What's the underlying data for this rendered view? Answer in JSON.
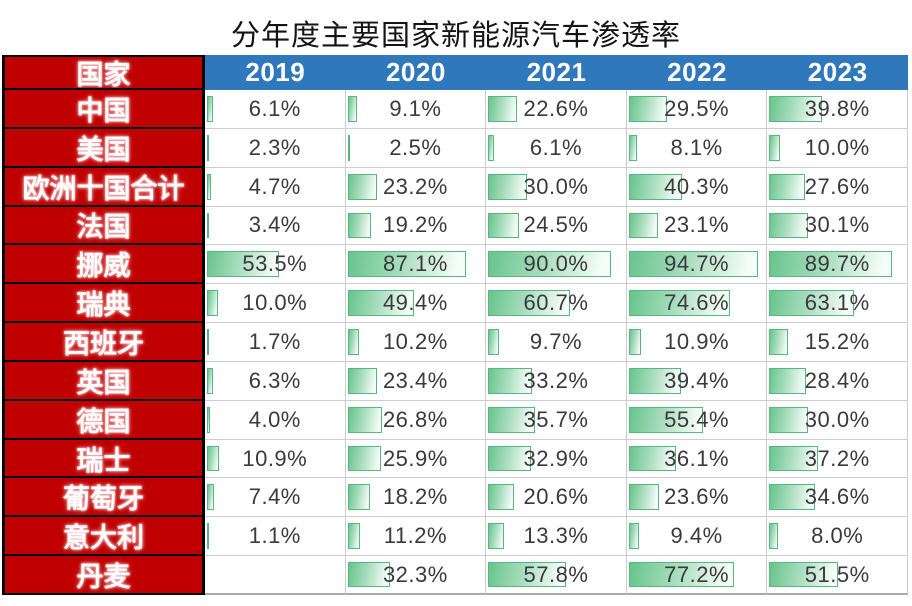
{
  "title": "分年度主要国家新能源汽车渗透率",
  "colors": {
    "country_column_red": "#C00000",
    "year_header_blue": "#3078BC",
    "data_bar_fill_green": "#68C48D",
    "data_bar_border_green": "#55B87D",
    "grid_line": "#CDCDCD",
    "value_text": "#3A3A3A"
  },
  "chart_data": {
    "type": "table",
    "title": "分年度主要国家新能源汽车渗透率",
    "corner_header": "国家",
    "columns": [
      "2019",
      "2020",
      "2021",
      "2022",
      "2023"
    ],
    "unit": "%",
    "value_scale": [
      0,
      100
    ],
    "bar_style": "green gradient data bars, length proportional to value",
    "series": [
      {
        "name": "中国",
        "values": [
          6.1,
          9.1,
          22.6,
          29.5,
          39.8
        ]
      },
      {
        "name": "美国",
        "values": [
          2.3,
          2.5,
          6.1,
          8.1,
          10.0
        ]
      },
      {
        "name": "欧洲十国合计",
        "values": [
          4.7,
          23.2,
          30.0,
          40.3,
          27.6
        ]
      },
      {
        "name": "法国",
        "values": [
          3.4,
          19.2,
          24.5,
          23.1,
          30.1
        ]
      },
      {
        "name": "挪威",
        "values": [
          53.5,
          87.1,
          90.0,
          94.7,
          89.7
        ]
      },
      {
        "name": "瑞典",
        "values": [
          10.0,
          49.4,
          60.7,
          74.6,
          63.1
        ]
      },
      {
        "name": "西班牙",
        "values": [
          1.7,
          10.2,
          9.7,
          10.9,
          15.2
        ]
      },
      {
        "name": "英国",
        "values": [
          6.3,
          23.4,
          33.2,
          39.4,
          28.4
        ]
      },
      {
        "name": "德国",
        "values": [
          4.0,
          26.8,
          35.7,
          55.4,
          30.0
        ]
      },
      {
        "name": "瑞士",
        "values": [
          10.9,
          25.9,
          32.9,
          36.1,
          37.2
        ]
      },
      {
        "name": "葡萄牙",
        "values": [
          7.4,
          18.2,
          20.6,
          23.6,
          34.6
        ]
      },
      {
        "name": "意大利",
        "values": [
          1.1,
          11.2,
          13.3,
          9.4,
          8.0
        ]
      },
      {
        "name": "丹麦",
        "values": [
          null,
          32.3,
          57.8,
          77.2,
          51.5
        ]
      }
    ]
  }
}
